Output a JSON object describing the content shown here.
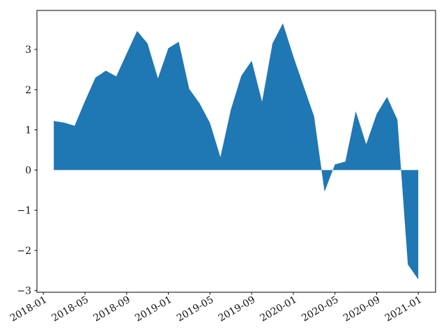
{
  "chart_data": {
    "type": "area",
    "title": "",
    "xlabel": "",
    "ylabel": "",
    "grid": false,
    "legend": null,
    "fill_color": "#1f77b4",
    "background_color": "#ffffff",
    "axis_color": "#000000",
    "tick_label_color": "#111111",
    "baseline": 0,
    "x": [
      "2018-02",
      "2018-03",
      "2018-04",
      "2018-05",
      "2018-06",
      "2018-07",
      "2018-08",
      "2018-09",
      "2018-10",
      "2018-11",
      "2018-12",
      "2019-01",
      "2019-02",
      "2019-03",
      "2019-04",
      "2019-05",
      "2019-06",
      "2019-07",
      "2019-08",
      "2019-09",
      "2019-10",
      "2019-11",
      "2019-12",
      "2020-01",
      "2020-02",
      "2020-03",
      "2020-04",
      "2020-05",
      "2020-06",
      "2020-07",
      "2020-08",
      "2020-09",
      "2020-10",
      "2020-11",
      "2020-12",
      "2021-01"
    ],
    "values": [
      1.22,
      1.18,
      1.1,
      1.72,
      2.3,
      2.47,
      2.33,
      2.9,
      3.46,
      3.15,
      2.28,
      3.03,
      3.19,
      2.02,
      1.66,
      1.17,
      0.32,
      1.5,
      2.34,
      2.72,
      1.7,
      3.15,
      3.65,
      2.83,
      2.08,
      1.33,
      -0.54,
      0.14,
      0.21,
      1.46,
      0.64,
      1.39,
      1.82,
      1.25,
      -2.35,
      -2.72
    ],
    "x_tick_labels": [
      "2018-01",
      "2018-05",
      "2018-09",
      "2019-01",
      "2019-05",
      "2019-09",
      "2020-01",
      "2020-05",
      "2020-09",
      "2021-01"
    ],
    "x_tick_rotation_deg": 30,
    "y_tick_labels": [
      "3",
      "2",
      "1",
      "0",
      "−1",
      "−2",
      "−3"
    ],
    "y_tick_values": [
      3,
      2,
      1,
      0,
      -1,
      -2,
      -3
    ],
    "ylim": [
      -3.04,
      3.97
    ],
    "xlim_month_offsets": [
      -0.62,
      37.66
    ]
  }
}
